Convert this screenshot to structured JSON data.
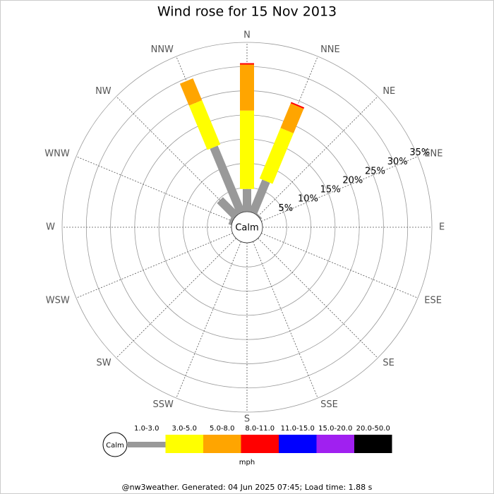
{
  "chart_data": {
    "type": "windrose",
    "title": "Wind rose for 15 Nov 2013",
    "directions": [
      "N",
      "NNE",
      "NE",
      "ENE",
      "E",
      "ESE",
      "SE",
      "SSE",
      "S",
      "SSW",
      "SW",
      "WSW",
      "W",
      "WNW",
      "NW",
      "NNW"
    ],
    "calm_label": "Calm",
    "rlim": [
      0,
      35
    ],
    "rticks": [
      {
        "value": 5,
        "label": "5%"
      },
      {
        "value": 10,
        "label": "10%"
      },
      {
        "value": 15,
        "label": "15%"
      },
      {
        "value": 20,
        "label": "20%"
      },
      {
        "value": 25,
        "label": "25%"
      },
      {
        "value": 30,
        "label": "30%"
      },
      {
        "value": 35,
        "label": "35%"
      }
    ],
    "series": [
      {
        "name": "1.0-3.0",
        "color": "#999999",
        "values": [
          4.7,
          7.1,
          0.3,
          0,
          0,
          0,
          0,
          0,
          0,
          0,
          0,
          0,
          0,
          0.6,
          4.7,
          14.7
        ]
      },
      {
        "name": "3.0-5.0",
        "color": "#ffff00",
        "values": [
          16.2,
          11.3,
          0,
          0,
          0,
          0,
          0,
          0,
          0,
          0,
          0,
          0,
          0,
          0,
          0,
          9.9
        ]
      },
      {
        "name": "5.0-8.0",
        "color": "#ffa500",
        "values": [
          9.5,
          5.5,
          0,
          0,
          0,
          0,
          0,
          0,
          0,
          0,
          0,
          0,
          0,
          0,
          0,
          4.9
        ]
      },
      {
        "name": "8.0-11.0",
        "color": "#ff0000",
        "values": [
          0.3,
          0.3,
          0,
          0,
          0,
          0,
          0,
          0,
          0,
          0,
          0,
          0,
          0,
          0,
          0,
          0
        ]
      },
      {
        "name": "11.0-15.0",
        "color": "#0000ff",
        "values": [
          0,
          0,
          0,
          0,
          0,
          0,
          0,
          0,
          0,
          0,
          0,
          0,
          0,
          0,
          0,
          0
        ]
      },
      {
        "name": "15.0-20.0",
        "color": "#a020f0",
        "values": [
          0,
          0,
          0,
          0,
          0,
          0,
          0,
          0,
          0,
          0,
          0,
          0,
          0,
          0,
          0,
          0
        ]
      },
      {
        "name": "20.0-50.0",
        "color": "#000000",
        "values": [
          0,
          0,
          0,
          0,
          0,
          0,
          0,
          0,
          0,
          0,
          0,
          0,
          0,
          0,
          0,
          0
        ]
      }
    ],
    "unit": "mph",
    "footer": "@nw3weather. Generated: 04 Jun 2025 07:45; Load time: 1.88 s"
  }
}
